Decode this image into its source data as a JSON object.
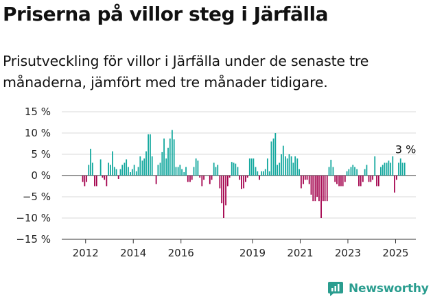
{
  "header": {
    "title": "Priserna på villor steg i Järfälla",
    "subtitle": "Prisutveckling för villor i Järfälla under de senaste tre månaderna, jämfört med tre månader tidigare."
  },
  "brand": {
    "label": "Newsworthy",
    "icon": "newsworthy-logo-icon",
    "color": "#2a9d8f"
  },
  "colors": {
    "positive": "#13a89e",
    "negative": "#a3004c",
    "gridline": "#cccccc",
    "axis": "#333333"
  },
  "chart_data": {
    "type": "bar",
    "xlim": [
      2011.0,
      2025.85
    ],
    "ylim": [
      -15,
      15
    ],
    "x_ticks": [
      2012,
      2014,
      2016,
      2019,
      2021,
      2023,
      2025
    ],
    "y_ticks": [
      {
        "value": 15,
        "label": "15 %"
      },
      {
        "value": 10,
        "label": "10 %"
      },
      {
        "value": 5,
        "label": "5 %"
      },
      {
        "value": 0,
        "label": "0 %"
      },
      {
        "value": -5,
        "label": "−5 %"
      },
      {
        "value": -10,
        "label": "−10 %"
      },
      {
        "value": -15,
        "label": "−15 %"
      }
    ],
    "grid": true,
    "annotation": {
      "text": "3 %",
      "x": 2025.42,
      "y": 3
    },
    "x": [
      2011.88,
      2011.96,
      2012.04,
      2012.13,
      2012.21,
      2012.29,
      2012.38,
      2012.46,
      2012.54,
      2012.63,
      2012.71,
      2012.79,
      2012.88,
      2012.96,
      2013.04,
      2013.13,
      2013.21,
      2013.29,
      2013.38,
      2013.46,
      2013.54,
      2013.63,
      2013.71,
      2013.79,
      2013.88,
      2013.96,
      2014.04,
      2014.13,
      2014.21,
      2014.29,
      2014.38,
      2014.46,
      2014.54,
      2014.63,
      2014.71,
      2014.79,
      2014.88,
      2014.96,
      2015.04,
      2015.13,
      2015.21,
      2015.29,
      2015.38,
      2015.46,
      2015.54,
      2015.63,
      2015.71,
      2015.79,
      2015.88,
      2015.96,
      2016.04,
      2016.13,
      2016.21,
      2016.29,
      2016.38,
      2016.46,
      2016.54,
      2016.63,
      2016.71,
      2016.79,
      2016.88,
      2016.96,
      2017.04,
      2017.13,
      2017.21,
      2017.29,
      2017.38,
      2017.46,
      2017.54,
      2017.63,
      2017.71,
      2017.79,
      2017.88,
      2017.96,
      2018.04,
      2018.13,
      2018.21,
      2018.29,
      2018.38,
      2018.46,
      2018.54,
      2018.63,
      2018.71,
      2018.79,
      2018.88,
      2018.96,
      2019.04,
      2019.13,
      2019.21,
      2019.29,
      2019.38,
      2019.46,
      2019.54,
      2019.63,
      2019.71,
      2019.79,
      2019.88,
      2019.96,
      2020.04,
      2020.13,
      2020.21,
      2020.29,
      2020.38,
      2020.46,
      2020.54,
      2020.63,
      2020.71,
      2020.79,
      2020.88,
      2020.96,
      2021.04,
      2021.13,
      2021.21,
      2021.29,
      2021.38,
      2021.46,
      2021.54,
      2021.63,
      2021.71,
      2021.79,
      2021.88,
      2021.96,
      2022.04,
      2022.13,
      2022.21,
      2022.29,
      2022.38,
      2022.46,
      2022.54,
      2022.63,
      2022.71,
      2022.79,
      2022.88,
      2022.96,
      2023.04,
      2023.13,
      2023.21,
      2023.29,
      2023.38,
      2023.46,
      2023.54,
      2023.63,
      2023.71,
      2023.79,
      2023.88,
      2023.96,
      2024.04,
      2024.13,
      2024.21,
      2024.29,
      2024.38,
      2024.46,
      2024.54,
      2024.63,
      2024.71,
      2024.79,
      2024.88,
      2024.96,
      2025.04,
      2025.13,
      2025.21,
      2025.29,
      2025.38
    ],
    "values": [
      -1.5,
      -2.5,
      -1.5,
      2.5,
      6.3,
      3.0,
      -2.5,
      -2.5,
      0,
      3.8,
      -0.5,
      -1.0,
      -2.5,
      3.0,
      2.5,
      5.7,
      2.0,
      1.5,
      -0.8,
      1.5,
      2.5,
      3.0,
      3.8,
      2.0,
      0.8,
      1.5,
      2.5,
      1.0,
      2.0,
      4.5,
      3.5,
      4.0,
      5.7,
      9.7,
      9.7,
      4.5,
      0,
      -2.0,
      2.5,
      3.0,
      5.5,
      8.7,
      4.0,
      6.5,
      8.7,
      10.7,
      8.5,
      2.0,
      2.0,
      2.5,
      1.5,
      0.8,
      2.0,
      -1.5,
      -1.5,
      -1.0,
      2.0,
      4.0,
      3.5,
      -0.5,
      -2.5,
      -1.0,
      0,
      0,
      -2.0,
      -1.0,
      3.0,
      2.0,
      2.5,
      -3.0,
      -6.5,
      -10.0,
      -7.0,
      -2.5,
      -0.5,
      3.2,
      3.0,
      2.8,
      2.0,
      -1.0,
      -3.2,
      -3.0,
      -1.5,
      -0.5,
      4.0,
      4.0,
      4.0,
      2.0,
      1.0,
      -1.0,
      1.0,
      1.0,
      1.5,
      4.0,
      1.0,
      8.0,
      8.7,
      10.0,
      2.5,
      3.0,
      5.0,
      7.0,
      4.5,
      4.0,
      5.0,
      4.5,
      3.0,
      4.5,
      4.0,
      1.5,
      -3.0,
      -2.0,
      -1.0,
      -1.0,
      -2.0,
      -4.5,
      -6.0,
      -6.0,
      -5.0,
      -6.0,
      -10.0,
      -6.0,
      -6.0,
      -6.0,
      2.0,
      3.7,
      2.0,
      -1.5,
      -2.0,
      -2.5,
      -2.5,
      -2.5,
      -1.5,
      1.0,
      1.5,
      2.0,
      2.5,
      2.0,
      1.5,
      -2.5,
      -2.5,
      -1.5,
      1.5,
      2.5,
      -1.5,
      -1.5,
      -1.0,
      4.5,
      -2.5,
      -2.5,
      2.0,
      2.5,
      3.0,
      3.0,
      3.5,
      3.0,
      4.5,
      -4.0,
      -1.0,
      3.0,
      4.0,
      3.0,
      3.0
    ]
  }
}
